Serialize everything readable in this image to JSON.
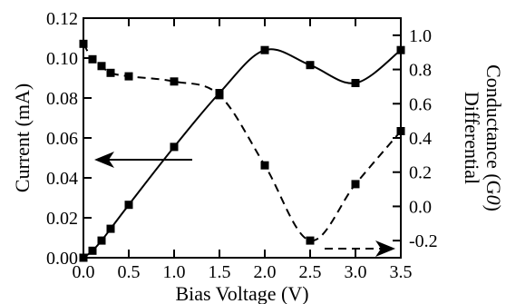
{
  "chart_data": {
    "type": "line",
    "xlabel": "Bias Voltage (V)",
    "ylabel_left": "Current (mA)",
    "ylabel_right_line1": "Differential",
    "ylabel_right_line2": "Conductance (G",
    "ylabel_right_sub": "0",
    "ylabel_right_end": ")",
    "xlim": [
      0.0,
      3.5
    ],
    "ylim_left": [
      0.0,
      0.12
    ],
    "ylim_right": [
      -0.3,
      1.1
    ],
    "x_ticks": [
      "0.0",
      "0.5",
      "1.0",
      "1.5",
      "2.0",
      "2.5",
      "3.0",
      "3.5"
    ],
    "x_tick_values": [
      0.0,
      0.5,
      1.0,
      1.5,
      2.0,
      2.5,
      3.0,
      3.5
    ],
    "y_left_ticks": [
      "0.00",
      "0.02",
      "0.04",
      "0.06",
      "0.08",
      "0.10",
      "0.12"
    ],
    "y_left_tick_values": [
      0.0,
      0.02,
      0.04,
      0.06,
      0.08,
      0.1,
      0.12
    ],
    "y_right_ticks": [
      "-0.2",
      "0.0",
      "0.2",
      "0.4",
      "0.6",
      "0.8",
      "1.0"
    ],
    "y_right_tick_values": [
      -0.2,
      0.0,
      0.2,
      0.4,
      0.6,
      0.8,
      1.0
    ],
    "grid": false,
    "series": [
      {
        "axis": "left",
        "line_style": "solid",
        "marker": "square",
        "points": [
          {
            "x": 0.0,
            "y": 0.0
          },
          {
            "x": 0.1,
            "y": 0.0035
          },
          {
            "x": 0.2,
            "y": 0.0086
          },
          {
            "x": 0.3,
            "y": 0.0145
          },
          {
            "x": 0.5,
            "y": 0.0265
          },
          {
            "x": 1.0,
            "y": 0.0555
          },
          {
            "x": 1.5,
            "y": 0.0825
          },
          {
            "x": 2.0,
            "y": 0.104
          },
          {
            "x": 2.5,
            "y": 0.0965
          },
          {
            "x": 3.0,
            "y": 0.0875
          },
          {
            "x": 3.5,
            "y": 0.104
          }
        ]
      },
      {
        "axis": "right",
        "line_style": "dashed",
        "marker": "square",
        "points": [
          {
            "x": 0.0,
            "y": 0.95
          },
          {
            "x": 0.1,
            "y": 0.86
          },
          {
            "x": 0.2,
            "y": 0.82
          },
          {
            "x": 0.3,
            "y": 0.78
          },
          {
            "x": 0.5,
            "y": 0.76
          },
          {
            "x": 1.0,
            "y": 0.73
          },
          {
            "x": 1.5,
            "y": 0.65
          },
          {
            "x": 2.0,
            "y": 0.24
          },
          {
            "x": 2.5,
            "y": -0.2
          },
          {
            "x": 3.0,
            "y": 0.13
          },
          {
            "x": 3.5,
            "y": 0.44
          }
        ]
      }
    ],
    "annotations": [
      {
        "type": "arrow",
        "direction": "left",
        "refers_to": "left axis",
        "style": "solid"
      },
      {
        "type": "arrow",
        "direction": "right",
        "refers_to": "right axis",
        "style": "dashed"
      }
    ]
  }
}
